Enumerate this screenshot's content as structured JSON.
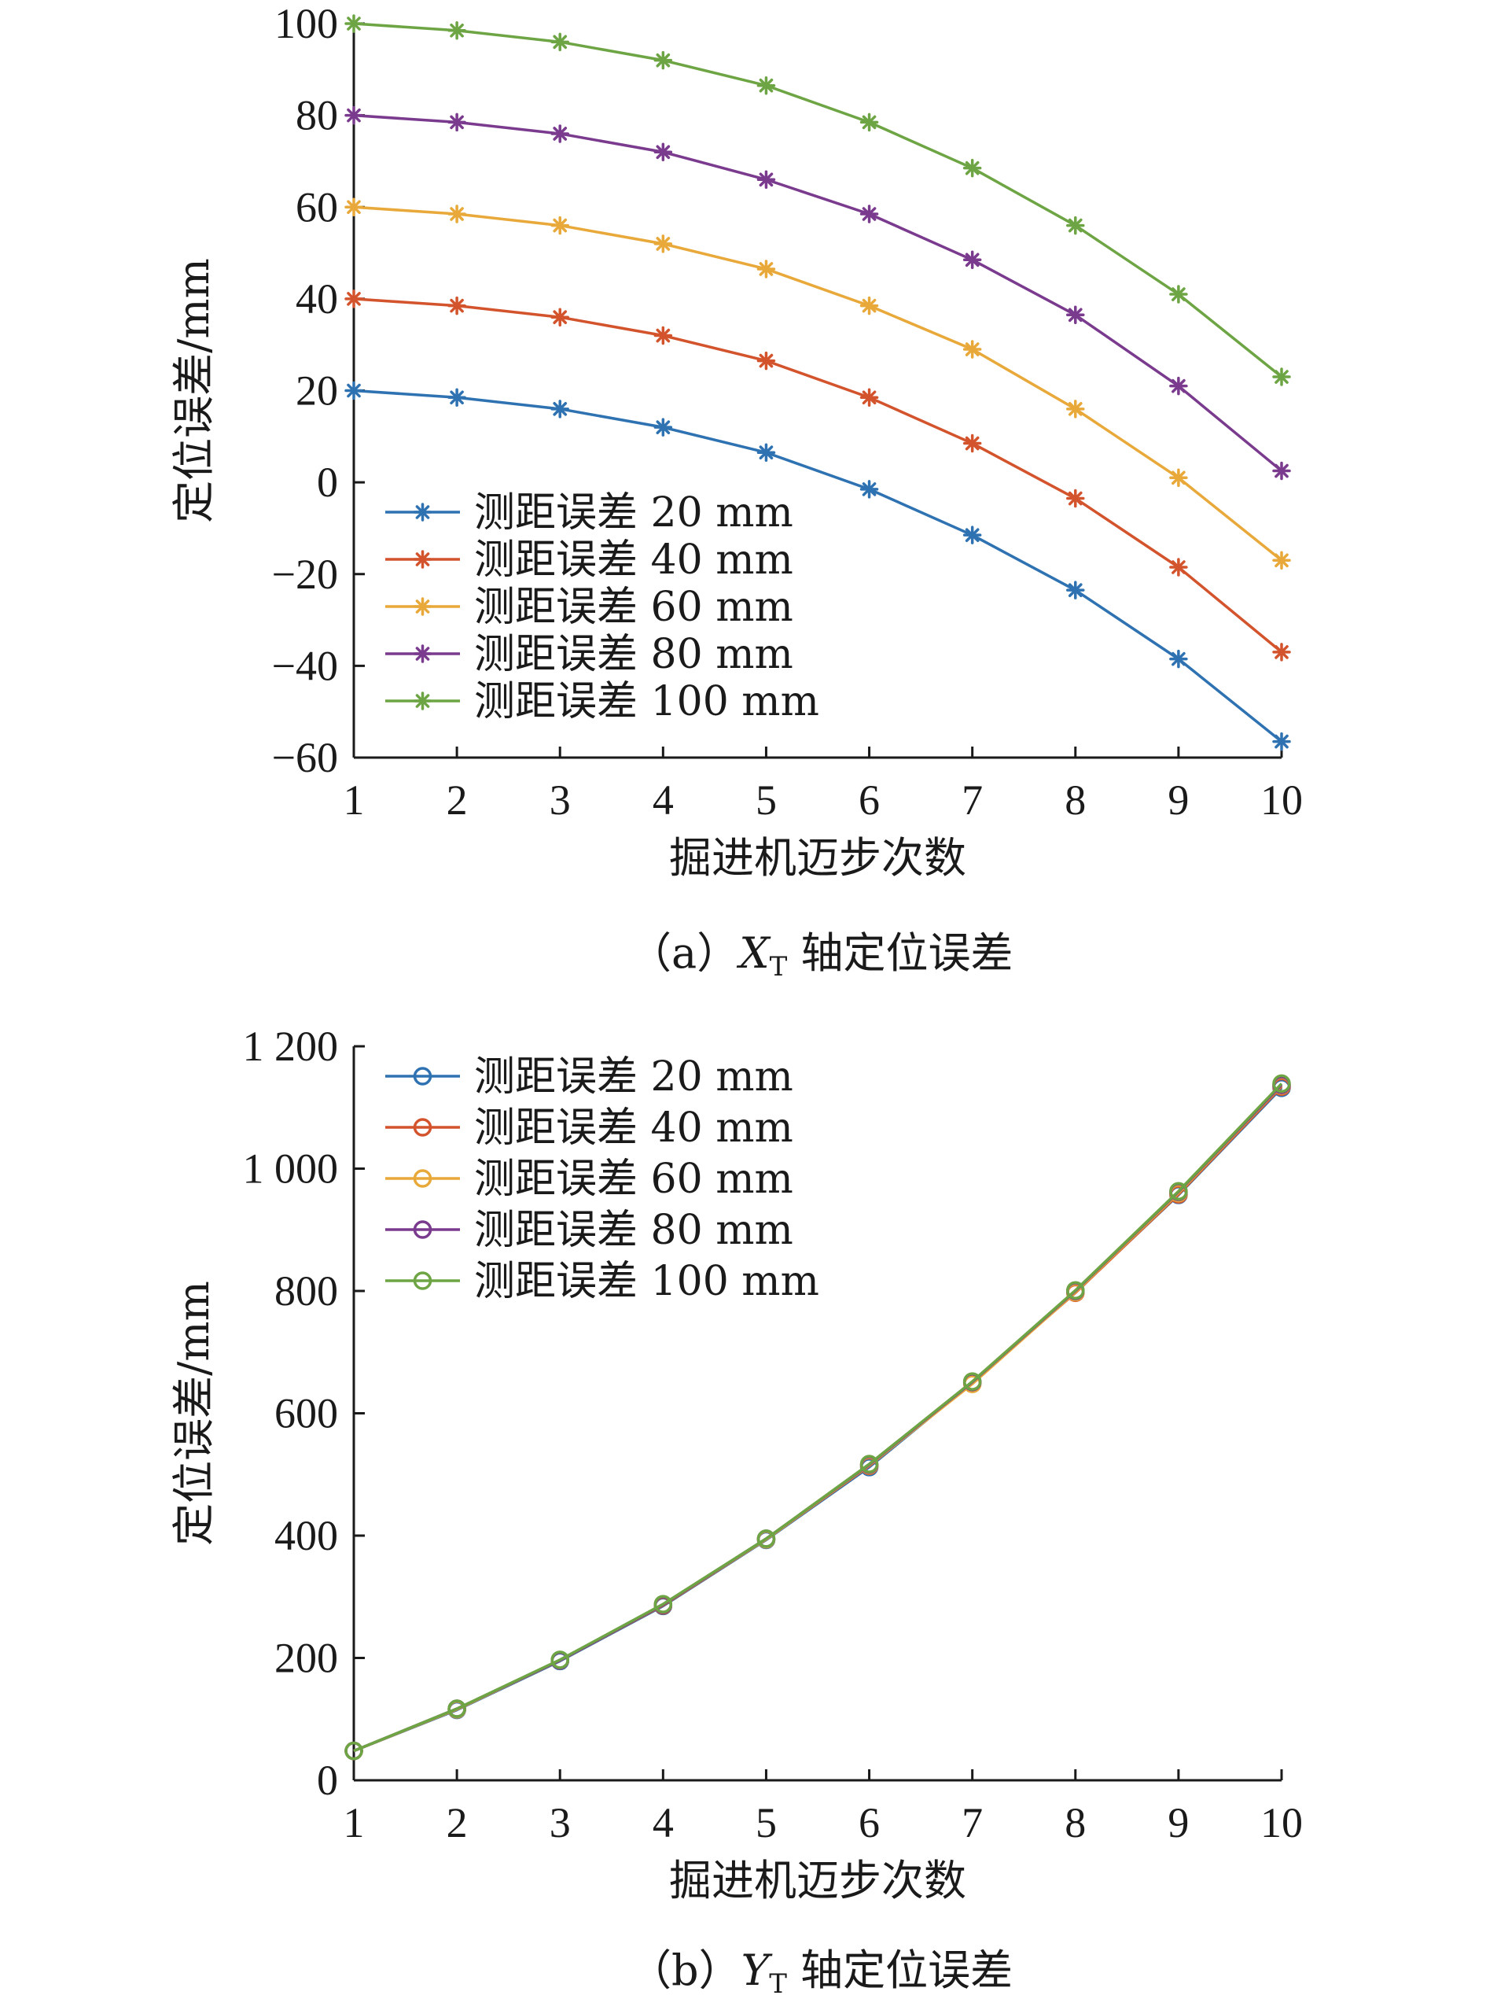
{
  "chart_data": [
    {
      "type": "line",
      "caption": {
        "prefix": "（a）",
        "var_main": "X",
        "var_sub": "T",
        "suffix": " 轴定位误差"
      },
      "xlabel": "掘进机迈步次数",
      "ylabel": "定位误差/mm",
      "xlim": [
        1,
        10
      ],
      "ylim": [
        -60,
        100
      ],
      "xticks": [
        1,
        2,
        3,
        4,
        5,
        6,
        7,
        8,
        9,
        10
      ],
      "xtick_labels": [
        "1",
        "2",
        "3",
        "4",
        "5",
        "6",
        "7",
        "8",
        "9",
        "10"
      ],
      "yticks": [
        -60,
        -40,
        -20,
        0,
        20,
        40,
        60,
        80,
        100
      ],
      "ytick_labels": [
        "−60",
        "−40",
        "−20",
        "0",
        "20",
        "40",
        "60",
        "80",
        "100"
      ],
      "marker": "asterisk",
      "legend_position": "bottom-left",
      "x": [
        1,
        2,
        3,
        4,
        5,
        6,
        7,
        8,
        9,
        10
      ],
      "series": [
        {
          "name": "测距误差 20 mm",
          "color": "#2E72B2",
          "values": [
            20,
            18.5,
            16,
            12,
            6.5,
            -1.5,
            -11.5,
            -23.5,
            -38.5,
            -56.5
          ]
        },
        {
          "name": "测距误差 40 mm",
          "color": "#D3542C",
          "values": [
            40,
            38.5,
            36,
            32,
            26.5,
            18.5,
            8.5,
            -3.5,
            -18.5,
            -37
          ]
        },
        {
          "name": "测距误差 60 mm",
          "color": "#E8A93A",
          "values": [
            60,
            58.5,
            56,
            52,
            46.5,
            38.5,
            29,
            16,
            1,
            -17
          ]
        },
        {
          "name": "测距误差 80 mm",
          "color": "#7A3A8E",
          "values": [
            80,
            78.5,
            76,
            72,
            66,
            58.5,
            48.5,
            36.5,
            21,
            2.5
          ]
        },
        {
          "name": "测距误差 100 mm",
          "color": "#6EA544",
          "values": [
            100,
            98.5,
            96,
            92,
            86.5,
            78.5,
            68.5,
            56,
            41,
            23
          ]
        }
      ]
    },
    {
      "type": "line",
      "caption": {
        "prefix": "（b）",
        "var_main": "Y",
        "var_sub": "T",
        "suffix": " 轴定位误差"
      },
      "xlabel": "掘进机迈步次数",
      "ylabel": "定位误差/mm",
      "xlim": [
        1,
        10
      ],
      "ylim": [
        0,
        1200
      ],
      "xticks": [
        1,
        2,
        3,
        4,
        5,
        6,
        7,
        8,
        9,
        10
      ],
      "xtick_labels": [
        "1",
        "2",
        "3",
        "4",
        "5",
        "6",
        "7",
        "8",
        "9",
        "10"
      ],
      "yticks": [
        0,
        200,
        400,
        600,
        800,
        1000,
        1200
      ],
      "ytick_labels": [
        "0",
        "200",
        "400",
        "600",
        "800",
        "1 000",
        "1 200"
      ],
      "marker": "circle",
      "legend_position": "top-left",
      "x": [
        1,
        2,
        3,
        4,
        5,
        6,
        7,
        8,
        9,
        10
      ],
      "series": [
        {
          "name": "测距误差 20 mm",
          "color": "#2E72B2",
          "values": [
            48,
            115,
            195,
            285,
            393,
            512,
            650,
            798,
            957,
            1132
          ]
        },
        {
          "name": "测距误差 40 mm",
          "color": "#D3542C",
          "values": [
            48,
            116,
            196,
            286,
            394,
            514,
            651,
            797,
            958,
            1134
          ]
        },
        {
          "name": "测距误差 60 mm",
          "color": "#E8A93A",
          "values": [
            48,
            116,
            196,
            287,
            394,
            515,
            648,
            798,
            960,
            1136
          ]
        },
        {
          "name": "测距误差 80 mm",
          "color": "#7A3A8E",
          "values": [
            48,
            117,
            196,
            287,
            395,
            516,
            651,
            800,
            962,
            1137
          ]
        },
        {
          "name": "测距误差 100 mm",
          "color": "#6EA544",
          "values": [
            48,
            117,
            197,
            288,
            395,
            517,
            652,
            801,
            963,
            1139
          ]
        }
      ]
    }
  ]
}
